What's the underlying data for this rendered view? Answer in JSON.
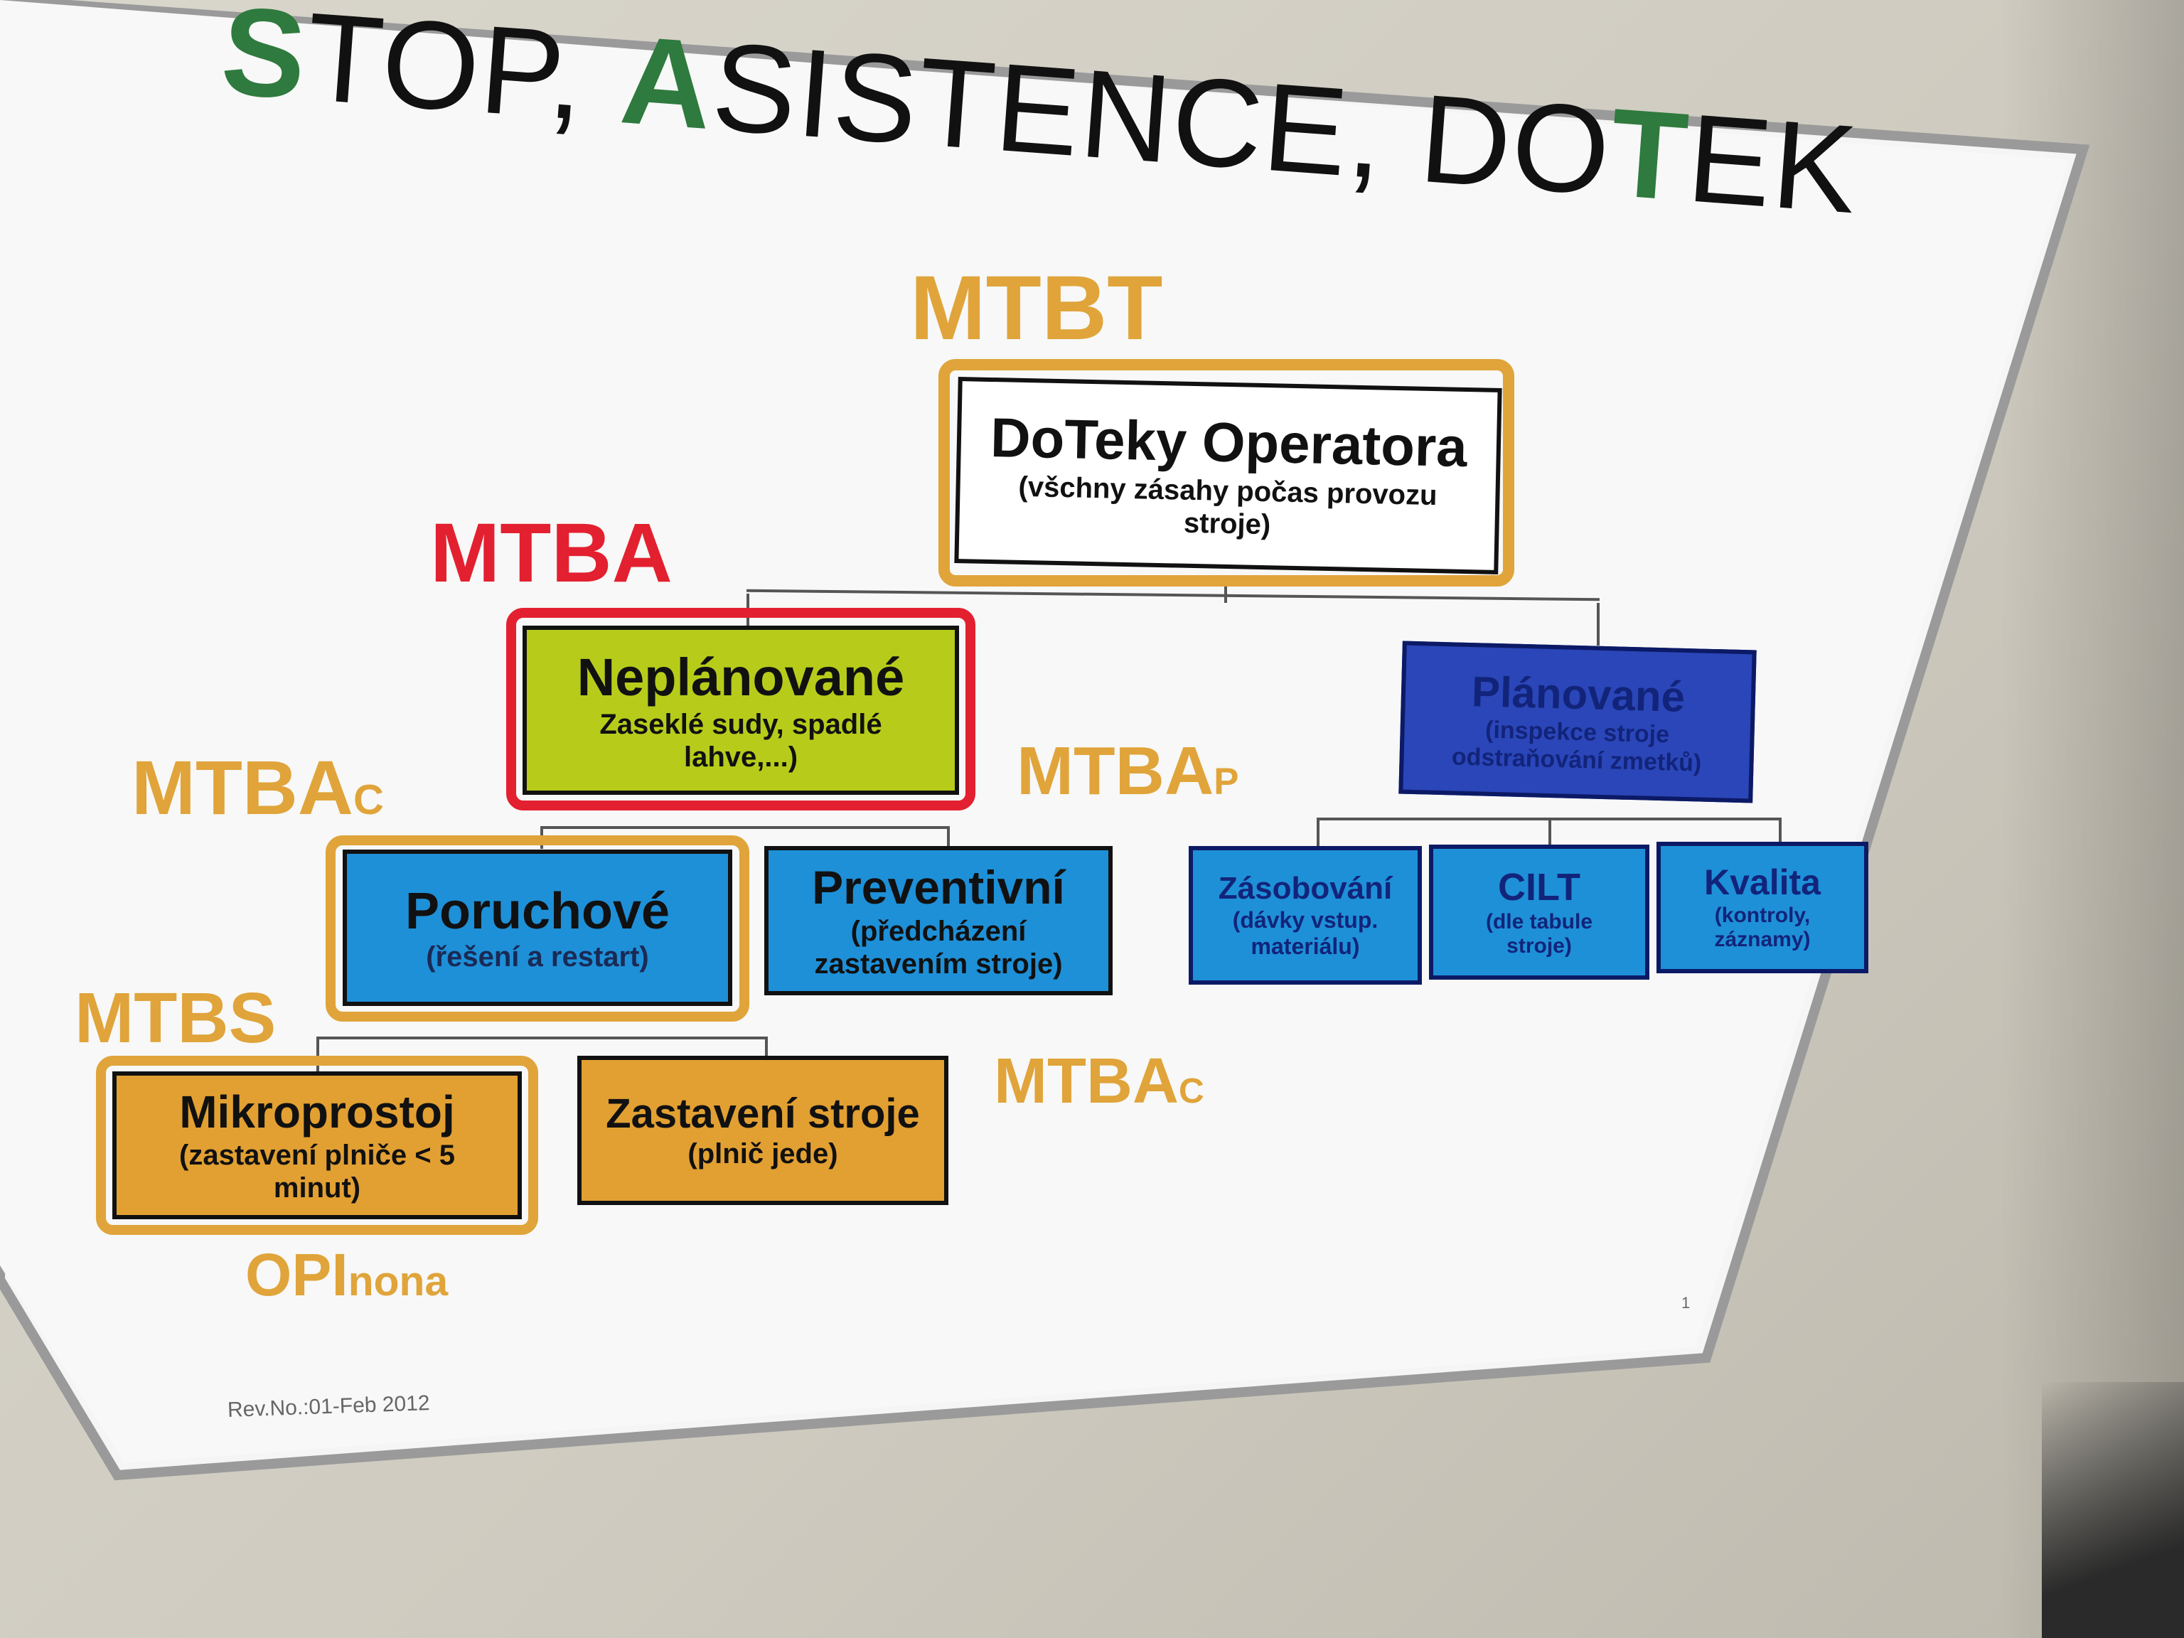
{
  "title": {
    "s": "S",
    "rest1": "TOP, ",
    "a": "A",
    "rest2": "SISTENCE, DO",
    "t": "T",
    "rest3": "EK"
  },
  "metrics": {
    "mtbt": "MTBT",
    "mtba": "MTBA",
    "mtbac_left": {
      "main": "MTBA",
      "sub": "C"
    },
    "mtbap": {
      "main": "MTBA",
      "sub": "P"
    },
    "mtbs": "MTBS",
    "mtbac_right": {
      "main": "MTBA",
      "sub": "C"
    },
    "opinona": {
      "main": "OPI",
      "sub": "nona"
    }
  },
  "nodes": {
    "root": {
      "title": "DoTeky Operatora",
      "sub": "(všchny zásahy počas provozu stroje)"
    },
    "neplanovane": {
      "title": "Neplánované",
      "sub": "Zaseklé sudy, spadlé lahve,...)"
    },
    "planovane": {
      "title": "Plánované",
      "sub": "(inspekce stroje odstraňování zmetků)"
    },
    "poruchove": {
      "title": "Poruchové",
      "sub": "(řešení a restart)"
    },
    "preventivni": {
      "title": "Preventivní",
      "sub": "(předcházení zastavením stroje)"
    },
    "zasobovani": {
      "title": "Zásobování",
      "sub": "(dávky vstup. materiálu)"
    },
    "cilt": {
      "title": "CILT",
      "sub": "(dle tabule stroje)"
    },
    "kvalita": {
      "title": "Kvalita",
      "sub": "(kontroly, záznamy)"
    },
    "mikroprostoj": {
      "title": "Mikroprostoj",
      "sub": "(zastavení plniče < 5 minut)"
    },
    "zastaveni": {
      "title": "Zastavení stroje",
      "sub": "(plnič jede)"
    }
  },
  "revision": "Rev.No.:01-Feb 2012",
  "page_number": "1",
  "colors": {
    "orange": "#e0a43a",
    "red": "#e3202f",
    "green_title": "#2f7a3e",
    "lime_box": "#b7cc1a",
    "blue_box": "#1e90d8",
    "dark_blue_box": "#2a46b8",
    "orange_box": "#e2a032"
  }
}
